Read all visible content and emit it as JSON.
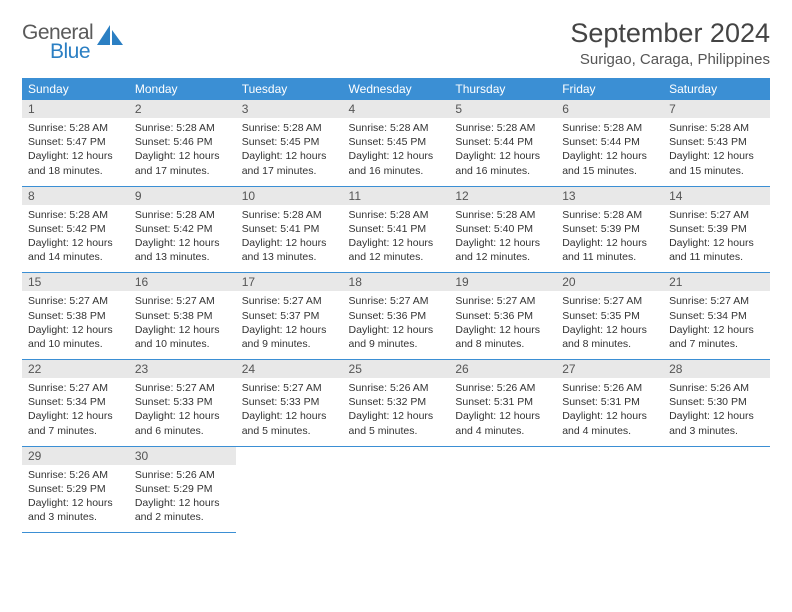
{
  "logo": {
    "general": "General",
    "blue": "Blue",
    "icon_color": "#2b7fc3"
  },
  "title": "September 2024",
  "location": "Surigao, Caraga, Philippines",
  "colors": {
    "header_bg": "#3b8fd4",
    "header_text": "#ffffff",
    "daynum_bg": "#e8e8e8",
    "border": "#3b8fd4"
  },
  "day_headers": [
    "Sunday",
    "Monday",
    "Tuesday",
    "Wednesday",
    "Thursday",
    "Friday",
    "Saturday"
  ],
  "days": [
    {
      "n": "1",
      "sunrise": "5:28 AM",
      "sunset": "5:47 PM",
      "daylight": "12 hours and 18 minutes."
    },
    {
      "n": "2",
      "sunrise": "5:28 AM",
      "sunset": "5:46 PM",
      "daylight": "12 hours and 17 minutes."
    },
    {
      "n": "3",
      "sunrise": "5:28 AM",
      "sunset": "5:45 PM",
      "daylight": "12 hours and 17 minutes."
    },
    {
      "n": "4",
      "sunrise": "5:28 AM",
      "sunset": "5:45 PM",
      "daylight": "12 hours and 16 minutes."
    },
    {
      "n": "5",
      "sunrise": "5:28 AM",
      "sunset": "5:44 PM",
      "daylight": "12 hours and 16 minutes."
    },
    {
      "n": "6",
      "sunrise": "5:28 AM",
      "sunset": "5:44 PM",
      "daylight": "12 hours and 15 minutes."
    },
    {
      "n": "7",
      "sunrise": "5:28 AM",
      "sunset": "5:43 PM",
      "daylight": "12 hours and 15 minutes."
    },
    {
      "n": "8",
      "sunrise": "5:28 AM",
      "sunset": "5:42 PM",
      "daylight": "12 hours and 14 minutes."
    },
    {
      "n": "9",
      "sunrise": "5:28 AM",
      "sunset": "5:42 PM",
      "daylight": "12 hours and 13 minutes."
    },
    {
      "n": "10",
      "sunrise": "5:28 AM",
      "sunset": "5:41 PM",
      "daylight": "12 hours and 13 minutes."
    },
    {
      "n": "11",
      "sunrise": "5:28 AM",
      "sunset": "5:41 PM",
      "daylight": "12 hours and 12 minutes."
    },
    {
      "n": "12",
      "sunrise": "5:28 AM",
      "sunset": "5:40 PM",
      "daylight": "12 hours and 12 minutes."
    },
    {
      "n": "13",
      "sunrise": "5:28 AM",
      "sunset": "5:39 PM",
      "daylight": "12 hours and 11 minutes."
    },
    {
      "n": "14",
      "sunrise": "5:27 AM",
      "sunset": "5:39 PM",
      "daylight": "12 hours and 11 minutes."
    },
    {
      "n": "15",
      "sunrise": "5:27 AM",
      "sunset": "5:38 PM",
      "daylight": "12 hours and 10 minutes."
    },
    {
      "n": "16",
      "sunrise": "5:27 AM",
      "sunset": "5:38 PM",
      "daylight": "12 hours and 10 minutes."
    },
    {
      "n": "17",
      "sunrise": "5:27 AM",
      "sunset": "5:37 PM",
      "daylight": "12 hours and 9 minutes."
    },
    {
      "n": "18",
      "sunrise": "5:27 AM",
      "sunset": "5:36 PM",
      "daylight": "12 hours and 9 minutes."
    },
    {
      "n": "19",
      "sunrise": "5:27 AM",
      "sunset": "5:36 PM",
      "daylight": "12 hours and 8 minutes."
    },
    {
      "n": "20",
      "sunrise": "5:27 AM",
      "sunset": "5:35 PM",
      "daylight": "12 hours and 8 minutes."
    },
    {
      "n": "21",
      "sunrise": "5:27 AM",
      "sunset": "5:34 PM",
      "daylight": "12 hours and 7 minutes."
    },
    {
      "n": "22",
      "sunrise": "5:27 AM",
      "sunset": "5:34 PM",
      "daylight": "12 hours and 7 minutes."
    },
    {
      "n": "23",
      "sunrise": "5:27 AM",
      "sunset": "5:33 PM",
      "daylight": "12 hours and 6 minutes."
    },
    {
      "n": "24",
      "sunrise": "5:27 AM",
      "sunset": "5:33 PM",
      "daylight": "12 hours and 5 minutes."
    },
    {
      "n": "25",
      "sunrise": "5:26 AM",
      "sunset": "5:32 PM",
      "daylight": "12 hours and 5 minutes."
    },
    {
      "n": "26",
      "sunrise": "5:26 AM",
      "sunset": "5:31 PM",
      "daylight": "12 hours and 4 minutes."
    },
    {
      "n": "27",
      "sunrise": "5:26 AM",
      "sunset": "5:31 PM",
      "daylight": "12 hours and 4 minutes."
    },
    {
      "n": "28",
      "sunrise": "5:26 AM",
      "sunset": "5:30 PM",
      "daylight": "12 hours and 3 minutes."
    },
    {
      "n": "29",
      "sunrise": "5:26 AM",
      "sunset": "5:29 PM",
      "daylight": "12 hours and 3 minutes."
    },
    {
      "n": "30",
      "sunrise": "5:26 AM",
      "sunset": "5:29 PM",
      "daylight": "12 hours and 2 minutes."
    }
  ],
  "labels": {
    "sunrise": "Sunrise:",
    "sunset": "Sunset:",
    "daylight": "Daylight:"
  }
}
